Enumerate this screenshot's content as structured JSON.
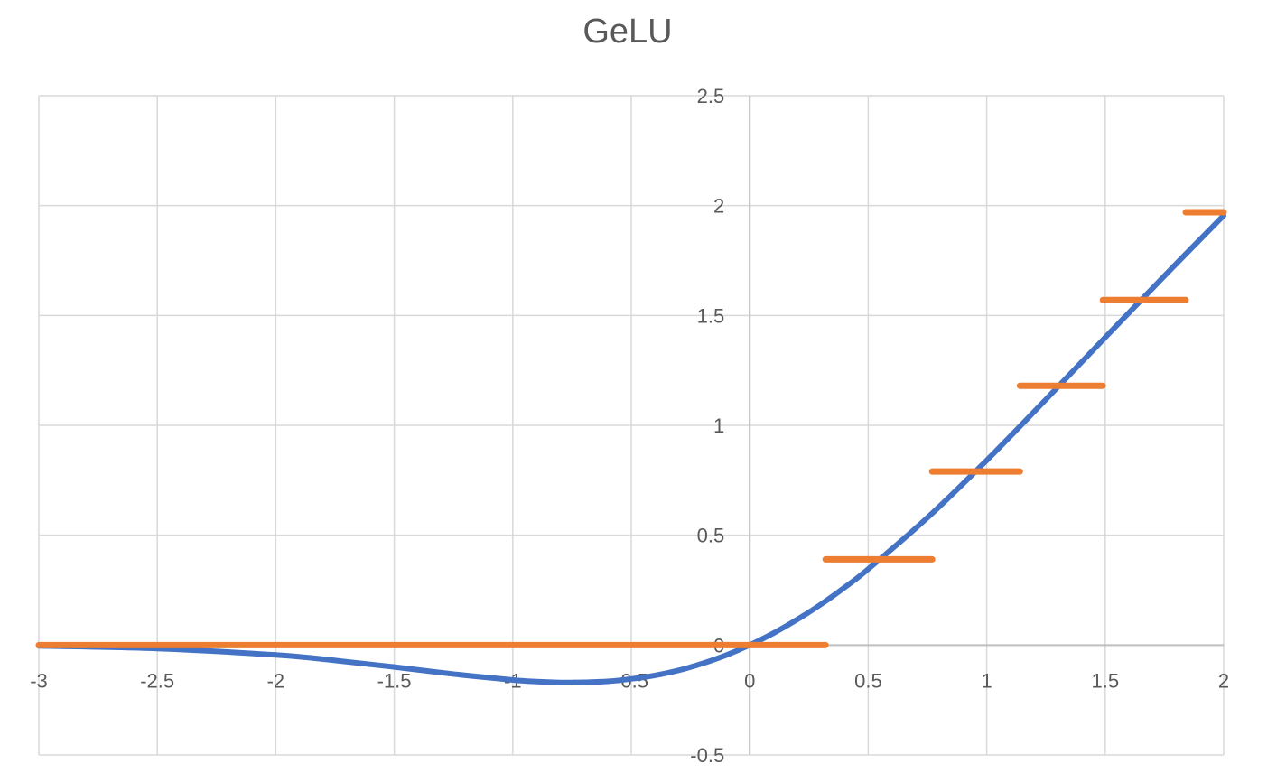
{
  "chart_data": {
    "type": "line",
    "title": "GeLU",
    "xlabel": "",
    "ylabel": "",
    "xlim": [
      -3,
      2
    ],
    "ylim": [
      -0.5,
      2.5
    ],
    "xticks": [
      "-3",
      "-2.5",
      "-2",
      "-1.5",
      "-1",
      "-0.5",
      "0",
      "0.5",
      "1",
      "1.5",
      "2"
    ],
    "yticks": [
      "-0.5",
      "0",
      "0.5",
      "1",
      "1.5",
      "2",
      "2.5"
    ],
    "grid": true,
    "legend": "none",
    "series": [
      {
        "color": "#4472C4",
        "style": "smooth",
        "x": [
          -3.0,
          -2.5,
          -2.0,
          -1.75,
          -1.5,
          -1.25,
          -1.0,
          -0.9,
          -0.8,
          -0.75,
          -0.7,
          -0.6,
          -0.5,
          -0.4,
          -0.3,
          -0.2,
          -0.1,
          0.0,
          0.1,
          0.2,
          0.3,
          0.4,
          0.5,
          0.75,
          1.0,
          1.25,
          1.5,
          1.75,
          2.0
        ],
        "y": [
          -0.004,
          -0.016,
          -0.045,
          -0.07,
          -0.1,
          -0.132,
          -0.159,
          -0.166,
          -0.17,
          -0.17,
          -0.169,
          -0.165,
          -0.154,
          -0.138,
          -0.115,
          -0.084,
          -0.046,
          0.0,
          0.054,
          0.116,
          0.185,
          0.262,
          0.346,
          0.58,
          0.841,
          1.118,
          1.4,
          1.68,
          1.955
        ]
      },
      {
        "color": "#ED7D31",
        "style": "steps",
        "segments": [
          {
            "x0": -3.0,
            "x1": 0.32,
            "y": 0.0
          },
          {
            "x0": 0.32,
            "x1": 0.77,
            "y": 0.39
          },
          {
            "x0": 0.77,
            "x1": 1.14,
            "y": 0.79
          },
          {
            "x0": 1.14,
            "x1": 1.49,
            "y": 1.18
          },
          {
            "x0": 1.49,
            "x1": 1.84,
            "y": 1.57
          },
          {
            "x0": 1.84,
            "x1": 2.0,
            "y": 1.97
          }
        ]
      }
    ]
  }
}
